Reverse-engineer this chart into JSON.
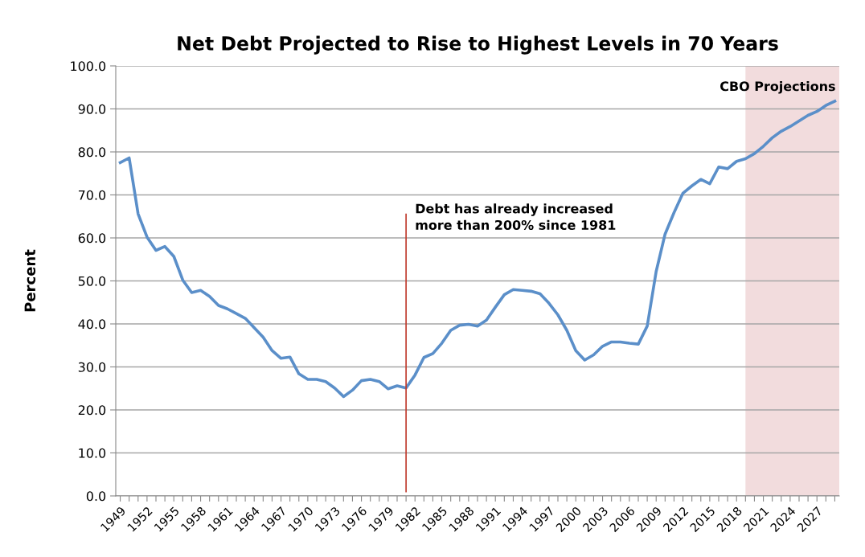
{
  "chart_data": {
    "type": "line",
    "title": "Net Debt Projected to Rise to Highest Levels in 70 Years",
    "ylabel": "Percent",
    "x": [
      1949,
      1950,
      1951,
      1952,
      1953,
      1954,
      1955,
      1956,
      1957,
      1958,
      1959,
      1960,
      1961,
      1962,
      1963,
      1964,
      1965,
      1966,
      1967,
      1968,
      1969,
      1970,
      1971,
      1972,
      1973,
      1974,
      1975,
      1976,
      1977,
      1978,
      1979,
      1980,
      1981,
      1982,
      1983,
      1984,
      1985,
      1986,
      1987,
      1988,
      1989,
      1990,
      1991,
      1992,
      1993,
      1994,
      1995,
      1996,
      1997,
      1998,
      1999,
      2000,
      2001,
      2002,
      2003,
      2004,
      2005,
      2006,
      2007,
      2008,
      2009,
      2010,
      2011,
      2012,
      2013,
      2014,
      2015,
      2016,
      2017,
      2018,
      2019,
      2020,
      2021,
      2022,
      2023,
      2024,
      2025,
      2026,
      2027,
      2028,
      2029
    ],
    "series": [
      {
        "color": "#5b8fc9",
        "values": [
          77.5,
          78.6,
          65.6,
          60.2,
          57.1,
          58.0,
          55.7,
          50.2,
          47.3,
          47.8,
          46.4,
          44.3,
          43.5,
          42.4,
          41.3,
          39.1,
          36.9,
          33.8,
          32.0,
          32.3,
          28.4,
          27.1,
          27.1,
          26.6,
          25.1,
          23.1,
          24.6,
          26.8,
          27.1,
          26.6,
          24.9,
          25.6,
          25.1,
          28.1,
          32.2,
          33.1,
          35.5,
          38.5,
          39.7,
          39.9,
          39.5,
          40.9,
          43.9,
          46.8,
          48.0,
          47.8,
          47.6,
          47.0,
          44.8,
          42.1,
          38.5,
          33.8,
          31.6,
          32.8,
          34.8,
          35.8,
          35.8,
          35.5,
          35.3,
          39.5,
          52.2,
          60.9,
          65.9,
          70.4,
          72.1,
          73.6,
          72.6,
          76.5,
          76.1,
          77.8,
          78.4,
          79.6,
          81.3,
          83.3,
          84.8,
          85.9,
          87.2,
          88.5,
          89.4,
          90.8,
          91.8
        ]
      }
    ],
    "xlim": [
      1948.5,
      2029.5
    ],
    "xticks": [
      1949,
      {
        "value": 1950,
        "label": null
      },
      {
        "value": 1951,
        "label": null
      },
      1952,
      {
        "value": 1953,
        "label": null
      },
      {
        "value": 1954,
        "label": null
      },
      1955,
      {
        "value": 1956,
        "label": null
      },
      {
        "value": 1957,
        "label": null
      },
      1958,
      {
        "value": 1959,
        "label": null
      },
      {
        "value": 1960,
        "label": null
      },
      1961,
      {
        "value": 1962,
        "label": null
      },
      {
        "value": 1963,
        "label": null
      },
      1964,
      {
        "value": 1965,
        "label": null
      },
      {
        "value": 1966,
        "label": null
      },
      1967,
      {
        "value": 1968,
        "label": null
      },
      {
        "value": 1969,
        "label": null
      },
      1970,
      {
        "value": 1971,
        "label": null
      },
      {
        "value": 1972,
        "label": null
      },
      1973,
      {
        "value": 1974,
        "label": null
      },
      {
        "value": 1975,
        "label": null
      },
      1976,
      {
        "value": 1977,
        "label": null
      },
      {
        "value": 1978,
        "label": null
      },
      1979,
      {
        "value": 1980,
        "label": null
      },
      {
        "value": 1981,
        "label": null
      },
      1982,
      {
        "value": 1983,
        "label": null
      },
      {
        "value": 1984,
        "label": null
      },
      1985,
      {
        "value": 1986,
        "label": null
      },
      {
        "value": 1987,
        "label": null
      },
      1988,
      {
        "value": 1989,
        "label": null
      },
      {
        "value": 1990,
        "label": null
      },
      1991,
      {
        "value": 1992,
        "label": null
      },
      {
        "value": 1993,
        "label": null
      },
      1994,
      {
        "value": 1995,
        "label": null
      },
      {
        "value": 1996,
        "label": null
      },
      1997,
      {
        "value": 1998,
        "label": null
      },
      {
        "value": 1999,
        "label": null
      },
      2000,
      {
        "value": 2001,
        "label": null
      },
      {
        "value": 2002,
        "label": null
      },
      2003,
      {
        "value": 2004,
        "label": null
      },
      {
        "value": 2005,
        "label": null
      },
      2006,
      {
        "value": 2007,
        "label": null
      },
      {
        "value": 2008,
        "label": null
      },
      2009,
      {
        "value": 2010,
        "label": null
      },
      {
        "value": 2011,
        "label": null
      },
      2012,
      {
        "value": 2013,
        "label": null
      },
      {
        "value": 2014,
        "label": null
      },
      2015,
      {
        "value": 2016,
        "label": null
      },
      {
        "value": 2017,
        "label": null
      },
      2018,
      {
        "value": 2019,
        "label": null
      },
      {
        "value": 2020,
        "label": null
      },
      2021,
      {
        "value": 2022,
        "label": null
      },
      {
        "value": 2023,
        "label": null
      },
      2024,
      {
        "value": 2025,
        "label": null
      },
      {
        "value": 2026,
        "label": null
      },
      2027,
      {
        "value": 2028,
        "label": null
      },
      {
        "value": 2029,
        "label": null
      }
    ],
    "ylim": [
      0,
      100
    ],
    "yticks": [
      {
        "value": 0,
        "label": "0.0"
      },
      {
        "value": 10,
        "label": "10.0"
      },
      {
        "value": 20,
        "label": "20.0"
      },
      {
        "value": 30,
        "label": "30.0"
      },
      {
        "value": 40,
        "label": "40.0"
      },
      {
        "value": 50,
        "label": "50.0"
      },
      {
        "value": 60,
        "label": "60.0"
      },
      {
        "value": 70,
        "label": "70.0"
      },
      {
        "value": 80,
        "label": "80.0"
      },
      {
        "value": 90,
        "label": "90.0"
      },
      {
        "value": 100,
        "label": "100.0"
      }
    ],
    "grid": "y",
    "ref_lines": [
      {
        "axis": "x",
        "value": 1981,
        "label": "Debt has already increased\nmore than 200% since 1981",
        "color": "#c0392b"
      }
    ],
    "bands": [
      {
        "axis": "x",
        "from": 2019,
        "to": 2029.5,
        "label": "CBO Projections",
        "color": "#f2dcdd"
      }
    ]
  }
}
